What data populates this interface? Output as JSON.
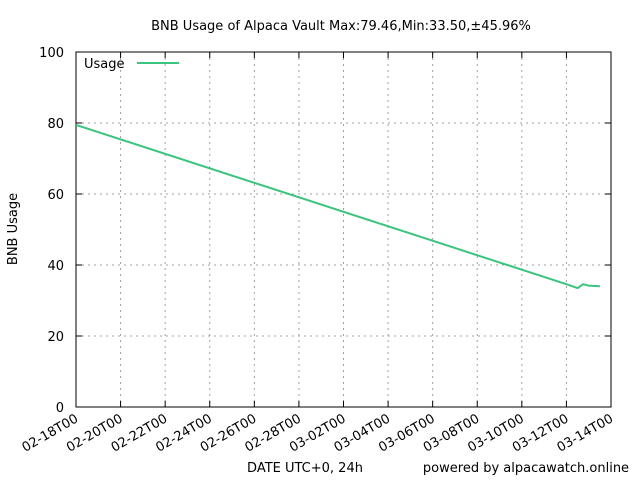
{
  "chart_data": {
    "type": "line",
    "title": "BNB Usage of Alpaca Vault Max:79.46,Min:33.50,±45.96%",
    "xlabel": "DATE UTC+0, 24h",
    "ylabel": "BNB Usage",
    "credit": "powered by alpacawatch.online",
    "ylim": [
      0,
      100
    ],
    "xlim": [
      "2022-02-18",
      "2022-03-14"
    ],
    "y_ticks": [
      0,
      20,
      40,
      60,
      80,
      100
    ],
    "x_ticks": [
      "02-18T00",
      "02-20T00",
      "02-22T00",
      "02-24T00",
      "02-26T00",
      "02-28T00",
      "03-02T00",
      "03-04T00",
      "03-06T00",
      "03-08T00",
      "03-10T00",
      "03-12T00",
      "03-14T00"
    ],
    "grid": true,
    "legend_position": "top-left",
    "series": [
      {
        "name": "Usage",
        "color": "#3cc47e",
        "x": [
          "2022-02-18T00:00",
          "2022-03-12T00:00",
          "2022-03-12T12:00",
          "2022-03-12T18:00",
          "2022-03-13T00:00",
          "2022-03-13T12:00"
        ],
        "values": [
          79.46,
          34.6,
          33.5,
          34.6,
          34.2,
          34.0
        ]
      }
    ]
  }
}
